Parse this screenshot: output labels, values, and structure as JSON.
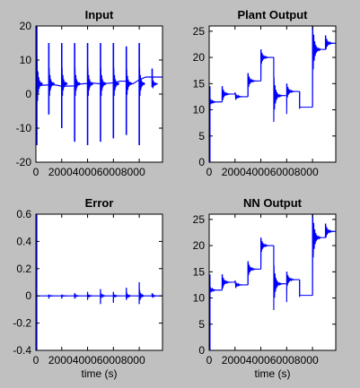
{
  "chart_data": [
    {
      "type": "line",
      "title": "Input",
      "xlabel": "",
      "ylabel": "",
      "xlim": [
        0,
        9800
      ],
      "ylim": [
        -20,
        20
      ],
      "xticks": [
        "0",
        "2000",
        "4000",
        "6000",
        "8000"
      ],
      "yticks": [
        "-20",
        "-10",
        "0",
        "10",
        "20"
      ],
      "color": "#0000ff",
      "grid": false,
      "baseline": [
        [
          0,
          0
        ],
        [
          100,
          2.5
        ],
        [
          1000,
          2.7
        ],
        [
          1500,
          2.7
        ],
        [
          2000,
          2.3
        ],
        [
          3000,
          2.4
        ],
        [
          3500,
          3.0
        ],
        [
          4500,
          3.2
        ],
        [
          5000,
          3.0
        ],
        [
          6000,
          3.3
        ],
        [
          6500,
          3.8
        ],
        [
          7000,
          3.8
        ],
        [
          7500,
          3.0
        ],
        [
          8000,
          4.2
        ],
        [
          8500,
          5.0
        ],
        [
          9800,
          5.0
        ]
      ],
      "spikes": [
        {
          "x": 0,
          "up": 20,
          "down": -15
        },
        {
          "x": 1000,
          "up": 15,
          "down": -6
        },
        {
          "x": 2000,
          "up": 15,
          "down": -10
        },
        {
          "x": 3000,
          "up": 15,
          "down": -14
        },
        {
          "x": 4000,
          "up": 15,
          "down": -15
        },
        {
          "x": 5000,
          "up": 15,
          "down": -14
        },
        {
          "x": 6000,
          "up": 15,
          "down": -13
        },
        {
          "x": 7000,
          "up": 14,
          "down": -12
        },
        {
          "x": 8000,
          "up": 15,
          "down": -15
        },
        {
          "x": 9000,
          "up": 7.5,
          "down": 2
        }
      ]
    },
    {
      "type": "line",
      "title": "Plant Output",
      "xlabel": "",
      "ylabel": "",
      "xlim": [
        0,
        9800
      ],
      "ylim": [
        0,
        26
      ],
      "xticks": [
        "0",
        "2000",
        "4000",
        "6000",
        "8000"
      ],
      "yticks": [
        "0",
        "5",
        "10",
        "15",
        "20",
        "25"
      ],
      "color": "#0000ff",
      "grid": false,
      "steps": [
        {
          "x0": 0,
          "x1": 1000,
          "level": 11.5,
          "over": 1.0,
          "start": 0
        },
        {
          "x0": 1000,
          "x1": 2000,
          "level": 13.0,
          "over": 1.5
        },
        {
          "x0": 2000,
          "x1": 3000,
          "level": 12.5,
          "over": 0.8
        },
        {
          "x0": 3000,
          "x1": 4000,
          "level": 15.5,
          "over": 1.5
        },
        {
          "x0": 4000,
          "x1": 5000,
          "level": 20.0,
          "over": 1.5
        },
        {
          "x0": 5000,
          "x1": 6000,
          "level": 12.7,
          "over": 3.5,
          "dip": 7.7
        },
        {
          "x0": 6000,
          "x1": 7000,
          "level": 13.5,
          "over": 1.5,
          "dip": 9.2
        },
        {
          "x0": 7000,
          "x1": 8000,
          "level": 10.5,
          "over": 0,
          "dip": 10.2
        },
        {
          "x0": 8000,
          "x1": 9000,
          "level": 21.5,
          "over": 5.0
        },
        {
          "x0": 9000,
          "x1": 9800,
          "level": 22.7,
          "over": 1.5
        }
      ]
    },
    {
      "type": "line",
      "title": "Error",
      "xlabel": "time (s)",
      "ylabel": "",
      "xlim": [
        0,
        9800
      ],
      "ylim": [
        -0.4,
        0.6
      ],
      "xticks": [
        "0",
        "2000",
        "4000",
        "6000",
        "8000"
      ],
      "yticks": [
        "-0.4",
        "-0.2",
        "0",
        "0.2",
        "0.4",
        "0.6"
      ],
      "color": "#0000ff",
      "grid": false,
      "initial_transient": {
        "up": 0.6,
        "down": -0.4
      },
      "spikes": [
        {
          "x": 1000,
          "up": 0.01,
          "down": -0.02
        },
        {
          "x": 2000,
          "up": 0.01,
          "down": -0.02
        },
        {
          "x": 3000,
          "up": 0.02,
          "down": -0.02
        },
        {
          "x": 4000,
          "up": 0.03,
          "down": -0.03
        },
        {
          "x": 5000,
          "up": 0.05,
          "down": -0.06
        },
        {
          "x": 6000,
          "up": 0.03,
          "down": -0.05
        },
        {
          "x": 7000,
          "up": 0.06,
          "down": -0.03
        },
        {
          "x": 8000,
          "up": 0.1,
          "down": -0.06
        },
        {
          "x": 9000,
          "up": 0.02,
          "down": -0.01
        }
      ]
    },
    {
      "type": "line",
      "title": "NN Output",
      "xlabel": "time (s)",
      "ylabel": "",
      "xlim": [
        0,
        9800
      ],
      "ylim": [
        0,
        26
      ],
      "xticks": [
        "0",
        "2000",
        "4000",
        "6000",
        "8000"
      ],
      "yticks": [
        "0",
        "5",
        "10",
        "15",
        "20",
        "25"
      ],
      "color": "#0000ff",
      "grid": false,
      "steps": [
        {
          "x0": 0,
          "x1": 1000,
          "level": 11.5,
          "over": 1.0,
          "start": 0
        },
        {
          "x0": 1000,
          "x1": 2000,
          "level": 13.0,
          "over": 1.5
        },
        {
          "x0": 2000,
          "x1": 3000,
          "level": 12.5,
          "over": 0.8
        },
        {
          "x0": 3000,
          "x1": 4000,
          "level": 15.5,
          "over": 1.5
        },
        {
          "x0": 4000,
          "x1": 5000,
          "level": 20.0,
          "over": 1.5
        },
        {
          "x0": 5000,
          "x1": 6000,
          "level": 12.7,
          "over": 3.5,
          "dip": 7.7
        },
        {
          "x0": 6000,
          "x1": 7000,
          "level": 13.5,
          "over": 1.5,
          "dip": 9.2
        },
        {
          "x0": 7000,
          "x1": 8000,
          "level": 10.5,
          "over": 0,
          "dip": 10.2
        },
        {
          "x0": 8000,
          "x1": 9000,
          "level": 21.5,
          "over": 5.0
        },
        {
          "x0": 9000,
          "x1": 9800,
          "level": 22.7,
          "over": 1.5
        }
      ]
    }
  ]
}
